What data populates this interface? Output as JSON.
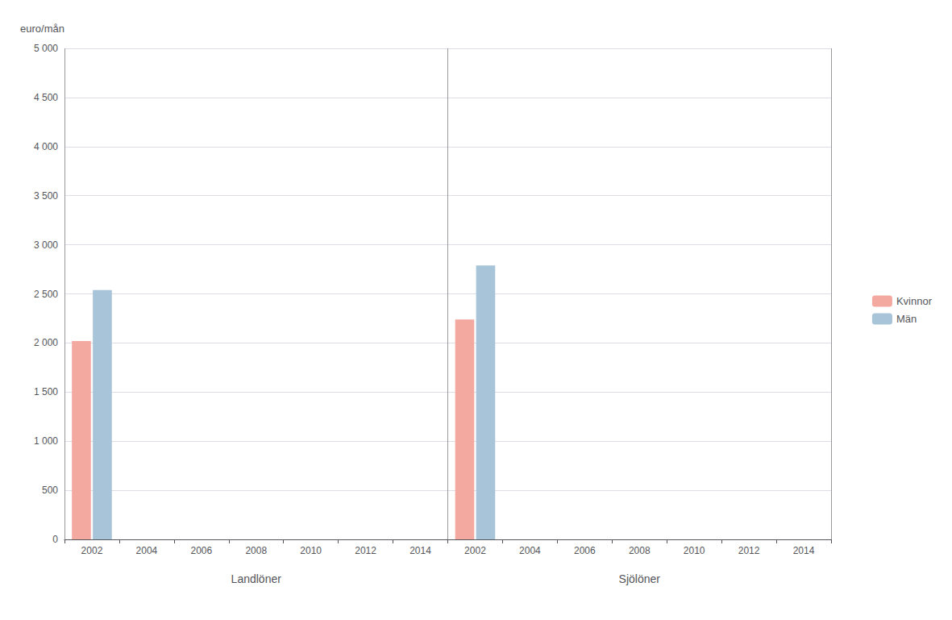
{
  "chart_data": {
    "type": "bar",
    "ylabel": "euro/mån",
    "categories": [
      "2002",
      "2004",
      "2006",
      "2008",
      "2010",
      "2012",
      "2014",
      "2002",
      "2004",
      "2006",
      "2008",
      "2010",
      "2012",
      "2014"
    ],
    "groups": [
      "Landlöner",
      "Sjölöner"
    ],
    "series": [
      {
        "name": "Kvinnor",
        "color": "#F4A9A0",
        "values": [
          2020,
          0,
          0,
          0,
          0,
          0,
          0,
          2240,
          0,
          0,
          0,
          0,
          0,
          0
        ]
      },
      {
        "name": "Män",
        "color": "#A8C4D8",
        "values": [
          2540,
          0,
          0,
          0,
          0,
          0,
          0,
          2790,
          0,
          0,
          0,
          0,
          0,
          0
        ]
      }
    ],
    "ylim": [
      0,
      5000
    ],
    "yticks": [
      0,
      500,
      {
        "value": 1000,
        "label": "1 000"
      },
      {
        "value": 1500,
        "label": "1 500"
      },
      {
        "value": 2000,
        "label": "2 000"
      },
      {
        "value": 2500,
        "label": "2 500"
      },
      {
        "value": 3000,
        "label": "3 000"
      },
      {
        "value": 3500,
        "label": "3 500"
      },
      {
        "value": 4000,
        "label": "4 000"
      },
      {
        "value": 4500,
        "label": "4 500"
      },
      {
        "value": 5000,
        "label": "5 000"
      }
    ],
    "grid": true,
    "legend": "right"
  }
}
